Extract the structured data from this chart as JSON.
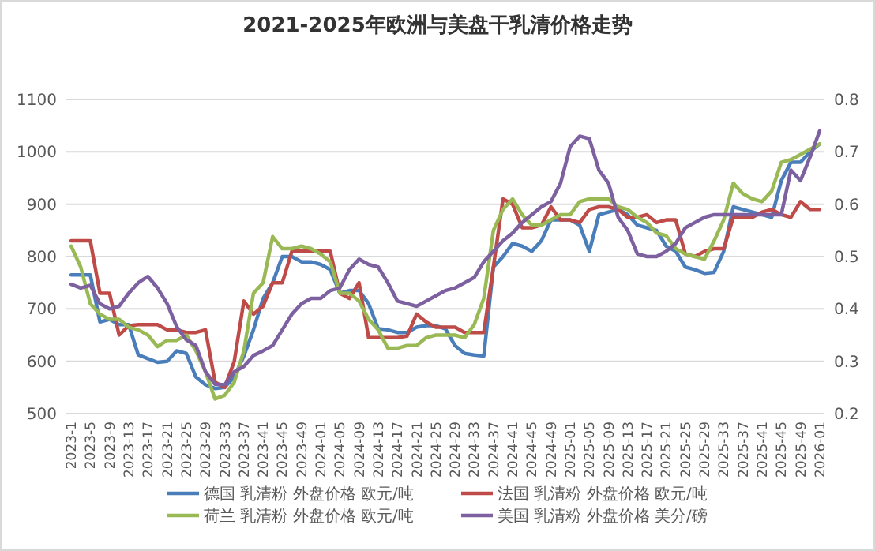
{
  "chart_data": {
    "type": "line",
    "title": "2021-2025年欧洲与美盘干乳清价格走势",
    "categories": [
      "2023-1",
      null,
      "2023-5",
      null,
      "2023-9",
      null,
      "2023-13",
      null,
      "2023-17",
      null,
      "2023-21",
      null,
      "2023-25",
      null,
      "2023-29",
      null,
      "2023-33",
      null,
      "2023-37",
      null,
      "2023-41",
      null,
      "2023-45",
      null,
      "2023-49",
      null,
      "2024-01",
      null,
      "2024-05",
      null,
      "2024-09",
      null,
      "2024-13",
      null,
      "2024-17",
      null,
      "2024-21",
      null,
      "2024-25",
      null,
      "2024-29",
      null,
      "2024-33",
      null,
      "2024-37",
      null,
      "2024-41",
      null,
      "2024-45",
      null,
      "2024-49",
      null,
      "2025-01",
      null,
      "2025-05",
      null,
      "2025-09",
      null,
      "2025-13",
      null,
      "2025-17",
      null,
      "2025-21",
      null,
      "2025-25",
      null,
      "2025-29",
      null,
      "2025-33",
      null,
      "2025-37",
      null,
      "2025-41",
      null,
      "2025-45",
      null,
      "2025-49",
      null,
      "2026-01"
    ],
    "series": [
      {
        "name": "德国 乳清粉 外盘价格 欧元/吨",
        "color": "#4a7ebb",
        "values": [
          765,
          765,
          765,
          675,
          680,
          670,
          670,
          612,
          605,
          598,
          600,
          620,
          615,
          570,
          555,
          548,
          550,
          570,
          610,
          660,
          720,
          750,
          800,
          800,
          790,
          790,
          785,
          775,
          730,
          735,
          735,
          710,
          662,
          660,
          655,
          655,
          665,
          668,
          668,
          662,
          630,
          615,
          612,
          610,
          780,
          800,
          825,
          820,
          810,
          830,
          870,
          870,
          870,
          860,
          810,
          880,
          885,
          890,
          880,
          860,
          855,
          850,
          820,
          810,
          780,
          775,
          768,
          770,
          810,
          895,
          890,
          885,
          880,
          875,
          945,
          980,
          980,
          1000,
          1015
        ]
      },
      {
        "name": "法国 乳清粉 外盘价格 欧元/吨",
        "color": "#be4b48",
        "values": [
          830,
          830,
          830,
          730,
          730,
          650,
          668,
          670,
          670,
          670,
          660,
          660,
          655,
          655,
          660,
          560,
          550,
          600,
          715,
          690,
          705,
          750,
          750,
          810,
          810,
          810,
          810,
          810,
          730,
          720,
          750,
          645,
          645,
          645,
          645,
          648,
          690,
          675,
          665,
          665,
          665,
          655,
          655,
          655,
          780,
          910,
          900,
          855,
          855,
          860,
          895,
          870,
          870,
          865,
          890,
          895,
          895,
          890,
          875,
          875,
          880,
          865,
          870,
          870,
          805,
          800,
          810,
          815,
          815,
          875,
          875,
          875,
          885,
          890,
          880,
          875,
          905,
          890,
          890
        ]
      },
      {
        "name": "荷兰 乳清粉 外盘价格 欧元/吨",
        "color": "#98b954",
        "values": [
          820,
          780,
          710,
          690,
          680,
          680,
          665,
          660,
          650,
          628,
          640,
          640,
          650,
          620,
          580,
          528,
          535,
          560,
          620,
          730,
          750,
          838,
          815,
          815,
          820,
          815,
          805,
          790,
          730,
          730,
          715,
          680,
          660,
          625,
          625,
          630,
          630,
          645,
          650,
          650,
          650,
          645,
          670,
          720,
          850,
          890,
          910,
          880,
          860,
          860,
          870,
          880,
          880,
          905,
          910,
          910,
          910,
          895,
          890,
          875,
          865,
          845,
          840,
          815,
          805,
          800,
          795,
          830,
          870,
          940,
          920,
          910,
          905,
          925,
          980,
          985,
          995,
          1005,
          1015
        ]
      },
      {
        "name": "美国 乳清粉 外盘价格 美分/磅",
        "color": "#7d60a0",
        "axis": "y2",
        "values": [
          0.447,
          0.44,
          0.445,
          0.41,
          0.4,
          0.405,
          0.43,
          0.45,
          0.462,
          0.44,
          0.41,
          0.366,
          0.341,
          0.33,
          0.28,
          0.256,
          0.255,
          0.28,
          0.29,
          0.311,
          0.32,
          0.33,
          0.36,
          0.39,
          0.41,
          0.42,
          0.42,
          0.435,
          0.44,
          0.475,
          0.495,
          0.485,
          0.48,
          0.45,
          0.415,
          0.41,
          0.405,
          0.415,
          0.425,
          0.435,
          0.44,
          0.45,
          0.46,
          0.49,
          0.51,
          0.53,
          0.545,
          0.565,
          0.58,
          0.595,
          0.605,
          0.64,
          0.71,
          0.73,
          0.725,
          0.665,
          0.64,
          0.575,
          0.55,
          0.505,
          0.5,
          0.5,
          0.51,
          0.525,
          0.555,
          0.565,
          0.575,
          0.58,
          0.58,
          0.58,
          0.58,
          0.58,
          0.58,
          0.58,
          0.58,
          0.665,
          0.645,
          0.69,
          0.74
        ]
      }
    ],
    "ylim": [
      500,
      1100
    ],
    "yticks": [
      500,
      600,
      700,
      800,
      900,
      1000,
      1100
    ],
    "y2lim": [
      0.2,
      0.8
    ],
    "y2ticks": [
      0.2,
      0.3,
      0.4,
      0.5,
      0.6,
      0.7,
      0.8
    ],
    "grid": "y",
    "legend": "bottom"
  }
}
